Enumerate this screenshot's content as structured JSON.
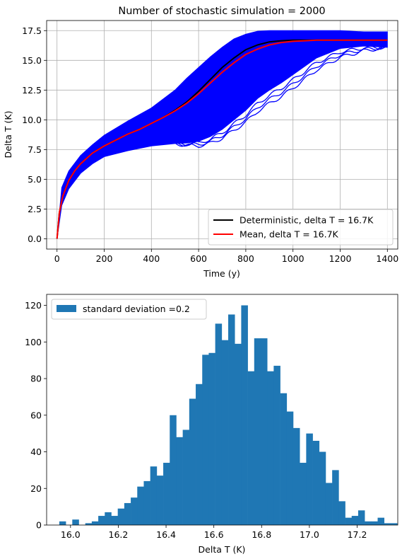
{
  "chart_data": [
    {
      "type": "line",
      "title": "Number of stochastic simulation = 2000",
      "xlabel": "Time (y)",
      "ylabel": "Delta T (K)",
      "xlim": [
        -44,
        1444
      ],
      "ylim": [
        -0.87,
        18.35
      ],
      "xticks": [
        0,
        200,
        400,
        600,
        800,
        1000,
        1200,
        1400
      ],
      "yticks": [
        0.0,
        2.5,
        5.0,
        7.5,
        10.0,
        12.5,
        15.0,
        17.5
      ],
      "xtick_labels": [
        "0",
        "200",
        "400",
        "600",
        "800",
        "1000",
        "1200",
        "1400"
      ],
      "ytick_labels": [
        "0.0",
        "2.5",
        "5.0",
        "7.5",
        "10.0",
        "12.5",
        "15.0",
        "17.5"
      ],
      "grid": true,
      "legend_position": "lower-right",
      "ensemble": {
        "color": "#0000ff",
        "x": [
          0,
          20,
          50,
          100,
          150,
          200,
          300,
          400,
          500,
          550,
          600,
          650,
          700,
          750,
          800,
          850,
          900,
          950,
          1000,
          1100,
          1200,
          1300,
          1400
        ],
        "upper": [
          0,
          4.3,
          5.7,
          7.0,
          7.9,
          8.7,
          9.9,
          11.0,
          12.5,
          13.5,
          14.4,
          15.3,
          16.1,
          16.8,
          17.2,
          17.45,
          17.5,
          17.5,
          17.5,
          17.5,
          17.5,
          17.4,
          17.4
        ],
        "lower": [
          0,
          2.8,
          4.2,
          5.5,
          6.3,
          6.9,
          7.4,
          7.8,
          8.0,
          8.05,
          8.2,
          8.6,
          9.2,
          10.0,
          10.8,
          11.8,
          12.5,
          13.1,
          13.8,
          15.2,
          16.0,
          16.2,
          16.1
        ]
      },
      "series": [
        {
          "name": "Deterministic, delta T = 16.7K",
          "color": "#000000",
          "x": [
            0,
            10,
            25,
            50,
            75,
            100,
            150,
            200,
            250,
            300,
            350,
            400,
            450,
            500,
            550,
            600,
            650,
            700,
            750,
            800,
            850,
            900,
            950,
            1000,
            1050,
            1100,
            1200,
            1300,
            1400
          ],
          "y": [
            0,
            2.2,
            3.6,
            4.9,
            5.7,
            6.3,
            7.2,
            7.8,
            8.3,
            8.8,
            9.2,
            9.7,
            10.2,
            10.8,
            11.5,
            12.4,
            13.4,
            14.4,
            15.2,
            15.9,
            16.3,
            16.55,
            16.65,
            16.7,
            16.7,
            16.7,
            16.7,
            16.7,
            16.7
          ]
        },
        {
          "name": "Mean, delta T = 16.7K",
          "color": "#ff0000",
          "x": [
            0,
            10,
            25,
            50,
            75,
            100,
            150,
            200,
            250,
            300,
            350,
            400,
            450,
            500,
            550,
            600,
            650,
            700,
            750,
            800,
            850,
            900,
            950,
            1000,
            1050,
            1100,
            1200,
            1300,
            1400
          ],
          "y": [
            0,
            2.2,
            3.6,
            4.9,
            5.7,
            6.3,
            7.2,
            7.8,
            8.3,
            8.8,
            9.2,
            9.7,
            10.2,
            10.75,
            11.4,
            12.2,
            13.1,
            14.0,
            14.8,
            15.5,
            15.95,
            16.3,
            16.5,
            16.6,
            16.65,
            16.7,
            16.7,
            16.7,
            16.7
          ]
        }
      ]
    },
    {
      "type": "bar",
      "subtype": "histogram",
      "title": "",
      "xlabel": "Delta T (K)",
      "ylabel": "",
      "xlim": [
        15.9,
        17.37
      ],
      "ylim": [
        0,
        126
      ],
      "xticks": [
        16.0,
        16.2,
        16.4,
        16.6,
        16.8,
        17.0,
        17.2
      ],
      "yticks": [
        0,
        20,
        40,
        60,
        80,
        100,
        120
      ],
      "xtick_labels": [
        "16.0",
        "16.2",
        "16.4",
        "16.6",
        "16.8",
        "17.0",
        "17.2"
      ],
      "ytick_labels": [
        "0",
        "20",
        "40",
        "60",
        "80",
        "100",
        "120"
      ],
      "grid": false,
      "legend_position": "top-left",
      "series": [
        {
          "name": "standard deviation =0.2",
          "color": "#1f77b4",
          "bin_start": 15.953,
          "bin_width": 0.0272,
          "values": [
            2,
            0,
            3,
            0,
            1,
            2,
            5,
            7,
            5,
            9,
            12,
            15,
            21,
            24,
            32,
            27,
            34,
            60,
            48,
            52,
            69,
            77,
            93,
            94,
            110,
            101,
            115,
            99,
            120,
            84,
            102,
            102,
            84,
            87,
            72,
            62,
            53,
            34,
            50,
            46,
            40,
            23,
            30,
            13,
            4,
            5,
            8,
            2,
            2,
            4,
            1,
            1
          ]
        }
      ]
    }
  ]
}
